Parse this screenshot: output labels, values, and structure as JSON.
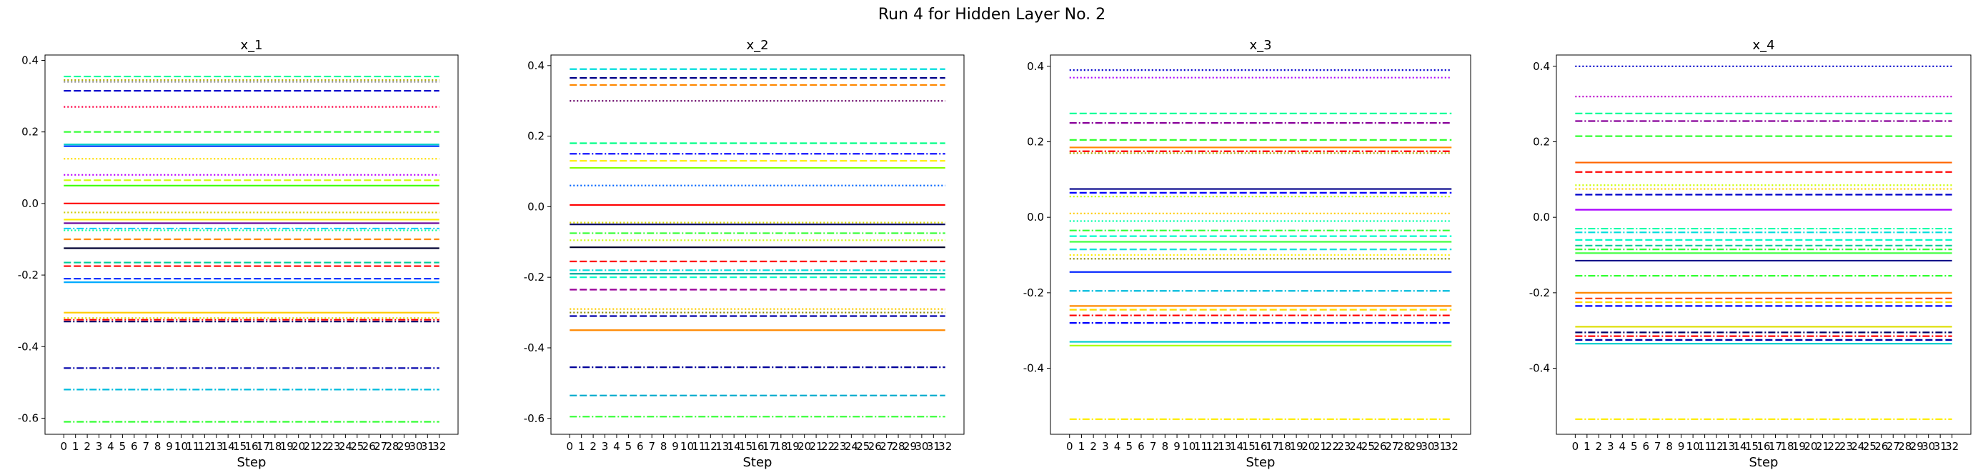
{
  "figure": {
    "title": "Run 4 for Hidden Layer No. 2"
  },
  "chart_data": [
    {
      "type": "line",
      "title": "x_1",
      "xlabel": "Step",
      "ylabel": "",
      "x": [
        0,
        1,
        2,
        3,
        4,
        5,
        6,
        7,
        8,
        9,
        10,
        11,
        12,
        13,
        14,
        15,
        16,
        17,
        18,
        19,
        20,
        21,
        22,
        23,
        24,
        25,
        26,
        27,
        28,
        29,
        30,
        31,
        32
      ],
      "xlim": [
        -1.6,
        33.6
      ],
      "ylim": [
        -0.645,
        0.415
      ],
      "yticks": [
        -0.6,
        -0.4,
        -0.2,
        0.0,
        0.2,
        0.4
      ],
      "grid": false,
      "series": [
        {
          "values": 0.355,
          "color": "#19ff9c",
          "style": "dashed"
        },
        {
          "values": 0.345,
          "color": "#aaaa00",
          "style": "dotted"
        },
        {
          "values": 0.34,
          "color": "#888888",
          "style": "dotted"
        },
        {
          "values": 0.315,
          "color": "#0000cc",
          "style": "dashed"
        },
        {
          "values": 0.27,
          "color": "#ff0044",
          "style": "dotted"
        },
        {
          "values": 0.2,
          "color": "#33ff33",
          "style": "dashed"
        },
        {
          "values": 0.165,
          "color": "#00cccc",
          "style": "solid"
        },
        {
          "values": 0.16,
          "color": "#1144ff",
          "style": "solid"
        },
        {
          "values": 0.125,
          "color": "#ffdd00",
          "style": "dotted"
        },
        {
          "values": 0.08,
          "color": "#bb00ff",
          "style": "dotted"
        },
        {
          "values": 0.065,
          "color": "#d4ff00",
          "style": "dashed"
        },
        {
          "values": 0.05,
          "color": "#44ff00",
          "style": "solid"
        },
        {
          "values": 0.0,
          "color": "#ff0000",
          "style": "solid"
        },
        {
          "values": -0.025,
          "color": "#cccc00",
          "style": "dotted"
        },
        {
          "values": -0.045,
          "color": "#ffee00",
          "style": "solid"
        },
        {
          "values": -0.055,
          "color": "#660099",
          "style": "solid"
        },
        {
          "values": -0.07,
          "color": "#00ccff",
          "style": "dashdot"
        },
        {
          "values": -0.075,
          "color": "#00ff99",
          "style": "dotted"
        },
        {
          "values": -0.1,
          "color": "#ff8800",
          "style": "dashed"
        },
        {
          "values": -0.125,
          "color": "#000033",
          "style": "solid"
        },
        {
          "values": -0.165,
          "color": "#00cc99",
          "style": "dashed"
        },
        {
          "values": -0.175,
          "color": "#ff0000",
          "style": "dashed"
        },
        {
          "values": -0.21,
          "color": "#0033ff",
          "style": "dashed"
        },
        {
          "values": -0.22,
          "color": "#00aaff",
          "style": "solid"
        },
        {
          "values": -0.305,
          "color": "#ffcc00",
          "style": "solid"
        },
        {
          "values": -0.32,
          "color": "#dddd00",
          "style": "dotted"
        },
        {
          "values": -0.325,
          "color": "#ff0000",
          "style": "dashdot"
        },
        {
          "values": -0.33,
          "color": "#000066",
          "style": "dashdot"
        },
        {
          "values": -0.46,
          "color": "#0000aa",
          "style": "dashdot"
        },
        {
          "values": -0.52,
          "color": "#00bbdd",
          "style": "dashdot"
        },
        {
          "values": -0.61,
          "color": "#33ff33",
          "style": "dashdot"
        }
      ]
    },
    {
      "type": "line",
      "title": "x_2",
      "xlabel": "Step",
      "ylabel": "",
      "x": [
        0,
        1,
        2,
        3,
        4,
        5,
        6,
        7,
        8,
        9,
        10,
        11,
        12,
        13,
        14,
        15,
        16,
        17,
        18,
        19,
        20,
        21,
        22,
        23,
        24,
        25,
        26,
        27,
        28,
        29,
        30,
        31,
        32
      ],
      "xlim": [
        -1.6,
        33.6
      ],
      "ylim": [
        -0.645,
        0.43
      ],
      "yticks": [
        -0.6,
        -0.4,
        -0.2,
        0.0,
        0.2,
        0.4
      ],
      "grid": false,
      "series": [
        {
          "values": 0.39,
          "color": "#00dddd",
          "style": "dashed"
        },
        {
          "values": 0.365,
          "color": "#000088",
          "style": "dashed"
        },
        {
          "values": 0.345,
          "color": "#ff8800",
          "style": "dashed"
        },
        {
          "values": 0.3,
          "color": "#660066",
          "style": "dotted"
        },
        {
          "values": 0.18,
          "color": "#00ff88",
          "style": "dashed"
        },
        {
          "values": 0.15,
          "color": "#0000ff",
          "style": "dashdot"
        },
        {
          "values": 0.13,
          "color": "#ffee00",
          "style": "dashed"
        },
        {
          "values": 0.11,
          "color": "#88ff00",
          "style": "solid"
        },
        {
          "values": 0.06,
          "color": "#0066ff",
          "style": "dotted"
        },
        {
          "values": 0.005,
          "color": "#ff0000",
          "style": "solid"
        },
        {
          "values": -0.045,
          "color": "#dddd00",
          "style": "dotted"
        },
        {
          "values": -0.05,
          "color": "#000066",
          "style": "solid"
        },
        {
          "values": -0.075,
          "color": "#33ff33",
          "style": "dashdot"
        },
        {
          "values": -0.095,
          "color": "#ccff00",
          "style": "dotted"
        },
        {
          "values": -0.115,
          "color": "#000022",
          "style": "solid"
        },
        {
          "values": -0.155,
          "color": "#ff0000",
          "style": "dashed"
        },
        {
          "values": -0.18,
          "color": "#00dddd",
          "style": "dashdot"
        },
        {
          "values": -0.19,
          "color": "#00aa99",
          "style": "solid"
        },
        {
          "values": -0.2,
          "color": "#00ffcc",
          "style": "dashed"
        },
        {
          "values": -0.235,
          "color": "#990099",
          "style": "dashed"
        },
        {
          "values": -0.29,
          "color": "#ffcc00",
          "style": "dotted"
        },
        {
          "values": -0.3,
          "color": "#888800",
          "style": "dotted"
        },
        {
          "values": -0.31,
          "color": "#0000aa",
          "style": "dashed"
        },
        {
          "values": -0.35,
          "color": "#ff8800",
          "style": "solid"
        },
        {
          "values": -0.455,
          "color": "#000099",
          "style": "dashdot"
        },
        {
          "values": -0.535,
          "color": "#00aacc",
          "style": "dashed"
        },
        {
          "values": -0.595,
          "color": "#33ff33",
          "style": "dashdot"
        }
      ]
    },
    {
      "type": "line",
      "title": "x_3",
      "xlabel": "Step",
      "ylabel": "",
      "x": [
        0,
        1,
        2,
        3,
        4,
        5,
        6,
        7,
        8,
        9,
        10,
        11,
        12,
        13,
        14,
        15,
        16,
        17,
        18,
        19,
        20,
        21,
        22,
        23,
        24,
        25,
        26,
        27,
        28,
        29,
        30,
        31,
        32
      ],
      "xlim": [
        -1.6,
        33.6
      ],
      "ylim": [
        -0.575,
        0.43
      ],
      "yticks": [
        -0.4,
        -0.2,
        0.0,
        0.2,
        0.4
      ],
      "grid": false,
      "series": [
        {
          "values": 0.39,
          "color": "#0000cc",
          "style": "dotted"
        },
        {
          "values": 0.37,
          "color": "#aa00ff",
          "style": "dotted"
        },
        {
          "values": 0.275,
          "color": "#00ff99",
          "style": "dashed"
        },
        {
          "values": 0.25,
          "color": "#880099",
          "style": "dashdot"
        },
        {
          "values": 0.205,
          "color": "#33ff33",
          "style": "dashed"
        },
        {
          "values": 0.185,
          "color": "#ff8800",
          "style": "solid"
        },
        {
          "values": 0.175,
          "color": "#ff0000",
          "style": "dashdot"
        },
        {
          "values": 0.17,
          "color": "#aaaa00",
          "style": "dotted"
        },
        {
          "values": 0.075,
          "color": "#000088",
          "style": "solid"
        },
        {
          "values": 0.065,
          "color": "#0000ff",
          "style": "dashed"
        },
        {
          "values": 0.055,
          "color": "#ccff00",
          "style": "dotted"
        },
        {
          "values": 0.01,
          "color": "#ffcc00",
          "style": "dotted"
        },
        {
          "values": -0.01,
          "color": "#00ffaa",
          "style": "dotted"
        },
        {
          "values": -0.035,
          "color": "#33ff33",
          "style": "dashdot"
        },
        {
          "values": -0.05,
          "color": "#00ffcc",
          "style": "dashed"
        },
        {
          "values": -0.065,
          "color": "#44ff44",
          "style": "solid"
        },
        {
          "values": -0.085,
          "color": "#00dddd",
          "style": "dashed"
        },
        {
          "values": -0.1,
          "color": "#ffee00",
          "style": "dotted"
        },
        {
          "values": -0.11,
          "color": "#888800",
          "style": "dotted"
        },
        {
          "values": -0.145,
          "color": "#0022ff",
          "style": "solid"
        },
        {
          "values": -0.195,
          "color": "#00bbdd",
          "style": "dashdot"
        },
        {
          "values": -0.235,
          "color": "#ff8800",
          "style": "solid"
        },
        {
          "values": -0.245,
          "color": "#ffdd00",
          "style": "dashed"
        },
        {
          "values": -0.26,
          "color": "#ff0000",
          "style": "dashdot"
        },
        {
          "values": -0.28,
          "color": "#0000ff",
          "style": "dashdot"
        },
        {
          "values": -0.33,
          "color": "#00cccc",
          "style": "solid"
        },
        {
          "values": -0.34,
          "color": "#aaff00",
          "style": "solid"
        },
        {
          "values": -0.535,
          "color": "#ffee00",
          "style": "dashdot"
        }
      ]
    },
    {
      "type": "line",
      "title": "x_4",
      "xlabel": "Step",
      "ylabel": "",
      "x": [
        0,
        1,
        2,
        3,
        4,
        5,
        6,
        7,
        8,
        9,
        10,
        11,
        12,
        13,
        14,
        15,
        16,
        17,
        18,
        19,
        20,
        21,
        22,
        23,
        24,
        25,
        26,
        27,
        28,
        29,
        30,
        31,
        32
      ],
      "xlim": [
        -1.6,
        33.6
      ],
      "ylim": [
        -0.575,
        0.43
      ],
      "yticks": [
        -0.4,
        -0.2,
        0.0,
        0.2,
        0.4
      ],
      "grid": false,
      "series": [
        {
          "values": 0.4,
          "color": "#0000cc",
          "style": "dotted"
        },
        {
          "values": 0.32,
          "color": "#bb00cc",
          "style": "dotted"
        },
        {
          "values": 0.275,
          "color": "#00ff99",
          "style": "dashed"
        },
        {
          "values": 0.255,
          "color": "#880099",
          "style": "dashdot"
        },
        {
          "values": 0.215,
          "color": "#33ff33",
          "style": "dashed"
        },
        {
          "values": 0.145,
          "color": "#ff6600",
          "style": "solid"
        },
        {
          "values": 0.12,
          "color": "#ff0000",
          "style": "dashed"
        },
        {
          "values": 0.085,
          "color": "#ccff00",
          "style": "dotted"
        },
        {
          "values": 0.075,
          "color": "#ffcc00",
          "style": "dotted"
        },
        {
          "values": 0.06,
          "color": "#0000cc",
          "style": "dashed"
        },
        {
          "values": 0.02,
          "color": "#aa00ff",
          "style": "solid"
        },
        {
          "values": -0.03,
          "color": "#00ffaa",
          "style": "dashdot"
        },
        {
          "values": -0.04,
          "color": "#00dddd",
          "style": "dashdot"
        },
        {
          "values": -0.06,
          "color": "#00ffcc",
          "style": "dashed"
        },
        {
          "values": -0.075,
          "color": "#00cc99",
          "style": "dashed"
        },
        {
          "values": -0.085,
          "color": "#33ff33",
          "style": "dashdot"
        },
        {
          "values": -0.095,
          "color": "#44ff44",
          "style": "solid"
        },
        {
          "values": -0.115,
          "color": "#000088",
          "style": "solid"
        },
        {
          "values": -0.155,
          "color": "#33ff33",
          "style": "dashdot"
        },
        {
          "values": -0.2,
          "color": "#ff8800",
          "style": "solid"
        },
        {
          "values": -0.215,
          "color": "#ff4400",
          "style": "dashed"
        },
        {
          "values": -0.225,
          "color": "#ffdd00",
          "style": "dashed"
        },
        {
          "values": -0.235,
          "color": "#0000ff",
          "style": "dashed"
        },
        {
          "values": -0.29,
          "color": "#dddd00",
          "style": "solid"
        },
        {
          "values": -0.305,
          "color": "#000066",
          "style": "dashdot"
        },
        {
          "values": -0.315,
          "color": "#ff0000",
          "style": "dashdot"
        },
        {
          "values": -0.325,
          "color": "#0000aa",
          "style": "dashed"
        },
        {
          "values": -0.335,
          "color": "#00cccc",
          "style": "solid"
        },
        {
          "values": -0.535,
          "color": "#ffee00",
          "style": "dashdot"
        }
      ]
    }
  ]
}
